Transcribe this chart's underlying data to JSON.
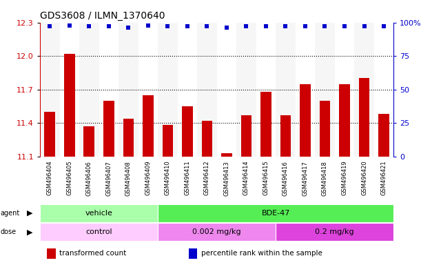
{
  "title": "GDS3608 / ILMN_1370640",
  "samples": [
    "GSM496404",
    "GSM496405",
    "GSM496406",
    "GSM496407",
    "GSM496408",
    "GSM496409",
    "GSM496410",
    "GSM496411",
    "GSM496412",
    "GSM496413",
    "GSM496414",
    "GSM496415",
    "GSM496416",
    "GSM496417",
    "GSM496418",
    "GSM496419",
    "GSM496420",
    "GSM496421"
  ],
  "bar_values": [
    11.5,
    12.02,
    11.37,
    11.6,
    11.44,
    11.65,
    11.38,
    11.55,
    11.42,
    11.13,
    11.47,
    11.68,
    11.47,
    11.75,
    11.6,
    11.75,
    11.8,
    11.48
  ],
  "percentile_values": [
    97,
    98,
    97,
    97,
    96,
    98,
    97,
    97,
    97,
    96,
    97,
    97,
    97,
    97,
    97,
    97,
    97,
    97
  ],
  "bar_color": "#cc0000",
  "dot_color": "#0000cc",
  "ylim_left": [
    11.1,
    12.3
  ],
  "ylim_right": [
    0,
    100
  ],
  "yticks_left": [
    11.1,
    11.4,
    11.7,
    12.0,
    12.3
  ],
  "yticks_right": [
    0,
    25,
    50,
    75,
    100
  ],
  "ytick_labels_right": [
    "0",
    "25",
    "50",
    "75",
    "100%"
  ],
  "gridlines": [
    11.4,
    11.7,
    12.0
  ],
  "agent_groups": [
    {
      "label": "vehicle",
      "start": 0,
      "end": 6,
      "color": "#aaffaa"
    },
    {
      "label": "BDE-47",
      "start": 6,
      "end": 18,
      "color": "#55ee55"
    }
  ],
  "dose_groups": [
    {
      "label": "control",
      "start": 0,
      "end": 6,
      "color": "#ffccff"
    },
    {
      "label": "0.002 mg/kg",
      "start": 6,
      "end": 12,
      "color": "#ee88ee"
    },
    {
      "label": "0.2 mg/kg",
      "start": 12,
      "end": 18,
      "color": "#dd44dd"
    }
  ],
  "legend_items": [
    {
      "color": "#cc0000",
      "label": "transformed count"
    },
    {
      "color": "#0000cc",
      "label": "percentile rank within the sample"
    }
  ],
  "plot_bg_color": "#ffffff",
  "title_fontsize": 10,
  "tick_fontsize": 8,
  "bar_width": 0.55
}
